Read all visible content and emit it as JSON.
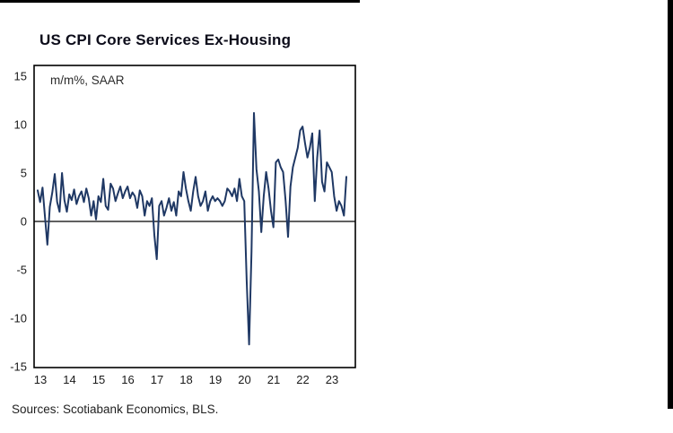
{
  "page": {
    "title": "US CPI Core Services Ex-Housing",
    "units_label": "m/m%, SAAR",
    "source": "Sources: Scotiabank Economics, BLS."
  },
  "chart_data": {
    "type": "line",
    "title": "US CPI Core Services Ex-Housing",
    "ylabel": "m/m%, SAAR",
    "ylim": [
      -15,
      15
    ],
    "yticks": [
      15,
      10,
      5,
      0,
      -5,
      -10,
      -15
    ],
    "xticks": [
      "13",
      "14",
      "15",
      "16",
      "17",
      "18",
      "19",
      "20",
      "21",
      "22",
      "23"
    ],
    "x_start": "2013-01",
    "frequency": "monthly",
    "grid": false,
    "legend": "none",
    "zero_line": true,
    "line_color": "#1f3864",
    "values": [
      3.2,
      2.0,
      3.5,
      0.5,
      -2.4,
      1.5,
      3.0,
      4.9,
      2.0,
      1.0,
      5.0,
      2.2,
      1.0,
      2.8,
      2.2,
      3.3,
      1.8,
      2.6,
      3.1,
      2.0,
      3.4,
      2.4,
      0.6,
      2.1,
      0.2,
      2.6,
      2.0,
      4.4,
      1.6,
      1.2,
      3.9,
      3.4,
      2.1,
      2.9,
      3.6,
      2.4,
      3.1,
      3.6,
      2.4,
      3.0,
      2.6,
      1.4,
      3.2,
      2.6,
      0.6,
      2.1,
      1.6,
      2.4,
      -1.4,
      -3.9,
      1.6,
      2.1,
      0.6,
      1.4,
      2.4,
      1.1,
      2.0,
      0.6,
      3.1,
      2.6,
      5.1,
      3.4,
      2.1,
      1.1,
      3.1,
      4.6,
      2.6,
      1.6,
      2.1,
      3.1,
      1.1,
      2.1,
      2.6,
      2.1,
      2.4,
      2.1,
      1.6,
      2.1,
      3.4,
      3.1,
      2.6,
      3.4,
      2.1,
      4.4,
      2.6,
      2.1,
      -6.1,
      -12.7,
      -3.1,
      11.2,
      5.4,
      3.1,
      -1.1,
      2.6,
      5.1,
      3.4,
      1.1,
      -0.6,
      6.1,
      6.4,
      5.6,
      5.1,
      2.1,
      -1.6,
      3.6,
      5.6,
      6.6,
      7.6,
      9.4,
      9.8,
      8.1,
      6.6,
      7.6,
      9.1,
      2.1,
      6.6,
      9.4,
      4.1,
      3.1,
      6.1,
      5.6,
      5.1,
      2.6,
      1.1,
      2.1,
      1.6,
      0.6,
      4.6
    ]
  }
}
